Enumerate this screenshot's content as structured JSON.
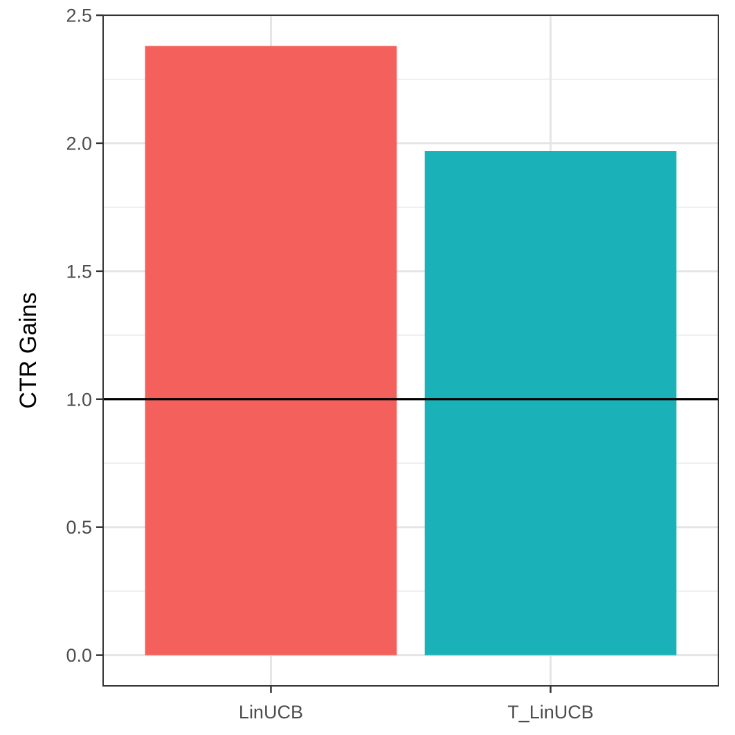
{
  "chart_data": {
    "type": "bar",
    "categories": [
      "LinUCB",
      "T_LinUCB"
    ],
    "values": [
      2.38,
      1.97
    ],
    "colors": [
      "#F4605C",
      "#1AB2B8"
    ],
    "xlabel": "",
    "ylabel": "CTR Gains",
    "ylim": [
      -0.12,
      2.5
    ],
    "yticks": [
      0.0,
      0.5,
      1.0,
      1.5,
      2.0,
      2.5
    ],
    "ytick_labels": [
      "0.0",
      "0.5",
      "1.0",
      "1.5",
      "2.0",
      "2.5"
    ],
    "minor_yticks": [
      0.25,
      0.75,
      1.25,
      1.75,
      2.25
    ],
    "reference_line": 1.0,
    "grid": true,
    "theme": "bw",
    "legend": "none"
  }
}
